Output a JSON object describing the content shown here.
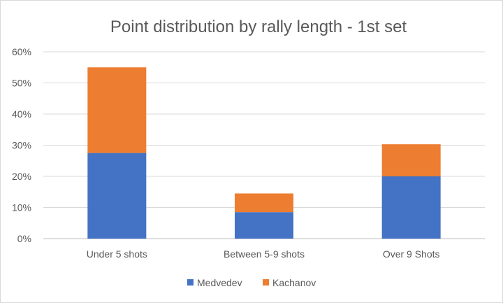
{
  "chart_data": {
    "type": "bar",
    "stacked": true,
    "title": "Point distribution by rally length - 1st set",
    "categories": [
      "Under 5 shots",
      "Between 5-9 shots",
      "Over 9 Shots"
    ],
    "series": [
      {
        "name": "Medvedev",
        "color": "#4472C4",
        "values": [
          27.5,
          8.5,
          20.0
        ]
      },
      {
        "name": "Kachanov",
        "color": "#ED7D31",
        "values": [
          27.5,
          6.0,
          10.3
        ]
      }
    ],
    "y_ticks": [
      "0%",
      "10%",
      "20%",
      "30%",
      "40%",
      "50%",
      "60%"
    ],
    "ylim": [
      0,
      60
    ],
    "y_unit": "%",
    "grid": true,
    "legend": "bottom"
  }
}
